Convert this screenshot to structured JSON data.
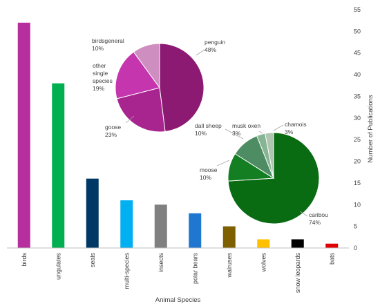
{
  "chart_data": [
    {
      "type": "bar",
      "categories": [
        "birds",
        "ungulates",
        "seals",
        "multi-species",
        "insects",
        "polar bears",
        "walruses",
        "wolves",
        "snow leopards",
        "bats"
      ],
      "values": [
        52,
        38,
        16,
        11,
        10,
        8,
        5,
        2,
        2,
        1
      ],
      "colors": [
        "#B72E9E",
        "#00B050",
        "#003865",
        "#00B0F0",
        "#808080",
        "#1F77D0",
        "#7F6000",
        "#FFC000",
        "#000000",
        "#E00000"
      ],
      "xlabel": "Animal Species",
      "ylabel": "Number of Publications",
      "ylim": [
        0,
        55
      ],
      "yticks": [
        0,
        5,
        10,
        15,
        20,
        25,
        30,
        35,
        40,
        45,
        50,
        55
      ],
      "y_axis_side": "right",
      "grid": false
    },
    {
      "type": "pie",
      "slices": [
        {
          "label": "penguin",
          "value": 48,
          "display": "48%",
          "color": "#8C1A72"
        },
        {
          "label": "goose",
          "value": 23,
          "display": "23%",
          "color": "#A8248F"
        },
        {
          "label": "other single species",
          "label_lines": [
            "other",
            "single",
            "species"
          ],
          "value": 19,
          "display": "19%",
          "color": "#C435AE"
        },
        {
          "label": "birdsgeneral",
          "value": 10,
          "display": "10%",
          "color": "#CE8FC0"
        }
      ]
    },
    {
      "type": "pie",
      "slices": [
        {
          "label": "caribou",
          "value": 74,
          "display": "74%",
          "color": "#096B12"
        },
        {
          "label": "moose",
          "value": 10,
          "display": "10%",
          "color": "#137E22"
        },
        {
          "label": "dall sheep",
          "value": 10,
          "display": "10%",
          "color": "#4E8D63"
        },
        {
          "label": "musk oxen",
          "value": 3,
          "display": "3%",
          "color": "#87B493"
        },
        {
          "label": "chamois",
          "value": 3,
          "display": "3%",
          "color": "#AFC6B3"
        }
      ]
    }
  ]
}
